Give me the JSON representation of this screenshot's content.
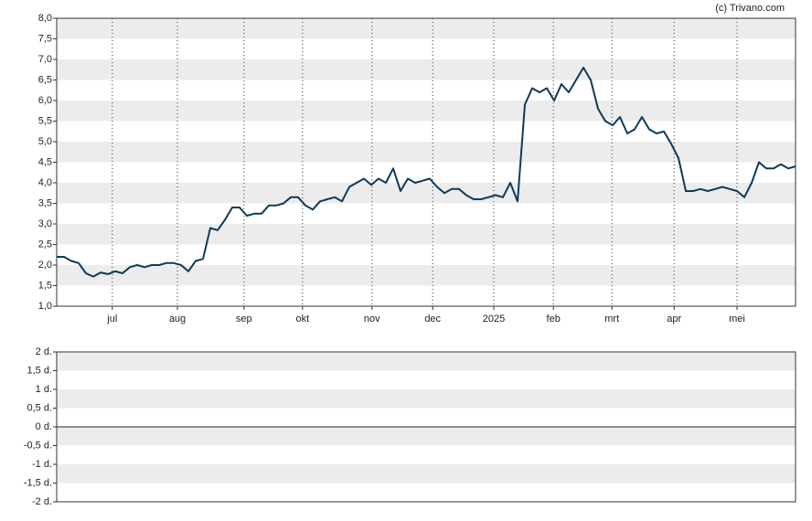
{
  "credit": "(c) Trivano.com",
  "chart_data": [
    {
      "type": "line",
      "xlim": [
        0,
        101
      ],
      "xticks": [
        {
          "value": 7.6,
          "label": "jul"
        },
        {
          "value": 16.5,
          "label": "aug"
        },
        {
          "value": 25.6,
          "label": "sep"
        },
        {
          "value": 33.6,
          "label": "okt"
        },
        {
          "value": 43.1,
          "label": "nov"
        },
        {
          "value": 51.4,
          "label": "dec"
        },
        {
          "value": 59.75,
          "label": "2025"
        },
        {
          "value": 67.9,
          "label": "feb"
        },
        {
          "value": 75.9,
          "label": "mrt"
        },
        {
          "value": 84.4,
          "label": "apr"
        },
        {
          "value": 93,
          "label": "mei"
        }
      ],
      "ylim": [
        1,
        8
      ],
      "yticks": [
        {
          "value": 1,
          "label": "1,0"
        },
        {
          "value": 1.5,
          "label": "1,5"
        },
        {
          "value": 2,
          "label": "2,0"
        },
        {
          "value": 2.5,
          "label": "2,5"
        },
        {
          "value": 3,
          "label": "3,0"
        },
        {
          "value": 3.5,
          "label": "3,5"
        },
        {
          "value": 4,
          "label": "4,0"
        },
        {
          "value": 4.5,
          "label": "4,5"
        },
        {
          "value": 5,
          "label": "5,0"
        },
        {
          "value": 5.5,
          "label": "5,5"
        },
        {
          "value": 6,
          "label": "6,0"
        },
        {
          "value": 6.5,
          "label": "6,5"
        },
        {
          "value": 7,
          "label": "7,0"
        },
        {
          "value": 7.5,
          "label": "7,5"
        },
        {
          "value": 8,
          "label": "8,0"
        }
      ],
      "color": "#0e3a5a",
      "values": [
        2.2,
        2.2,
        2.1,
        2.05,
        1.8,
        1.72,
        1.82,
        1.78,
        1.85,
        1.8,
        1.95,
        2.0,
        1.95,
        2.0,
        2.0,
        2.05,
        2.05,
        2.0,
        1.85,
        2.1,
        2.15,
        2.9,
        2.85,
        3.1,
        3.4,
        3.4,
        3.2,
        3.25,
        3.25,
        3.45,
        3.45,
        3.5,
        3.65,
        3.65,
        3.45,
        3.35,
        3.55,
        3.6,
        3.65,
        3.55,
        3.9,
        4.0,
        4.1,
        3.95,
        4.1,
        4.0,
        4.35,
        3.8,
        4.1,
        4.0,
        4.05,
        4.1,
        3.9,
        3.75,
        3.85,
        3.85,
        3.7,
        3.6,
        3.6,
        3.65,
        3.7,
        3.65,
        4.0,
        3.55,
        5.9,
        6.3,
        6.2,
        6.3,
        6.0,
        6.4,
        6.2,
        6.5,
        6.8,
        6.5,
        5.8,
        5.5,
        5.4,
        5.6,
        5.2,
        5.3,
        5.6,
        5.3,
        5.2,
        5.25,
        4.95,
        4.6,
        3.8,
        3.8,
        3.85,
        3.8,
        3.85,
        3.9,
        3.85,
        3.8,
        3.65,
        4.0,
        4.5,
        4.35,
        4.35,
        4.45,
        4.35,
        4.4
      ]
    },
    {
      "type": "bar",
      "ylim": [
        -2,
        2
      ],
      "yticks": [
        {
          "value": -2,
          "label": "-2 d."
        },
        {
          "value": -1.5,
          "label": "-1,5 d."
        },
        {
          "value": -1,
          "label": "-1 d."
        },
        {
          "value": -0.5,
          "label": "-0,5 d."
        },
        {
          "value": 0,
          "label": "0 d."
        },
        {
          "value": 0.5,
          "label": "0,5 d."
        },
        {
          "value": 1,
          "label": "1 d."
        },
        {
          "value": 1.5,
          "label": "1,5 d."
        },
        {
          "value": 2,
          "label": "2 d."
        }
      ]
    }
  ]
}
